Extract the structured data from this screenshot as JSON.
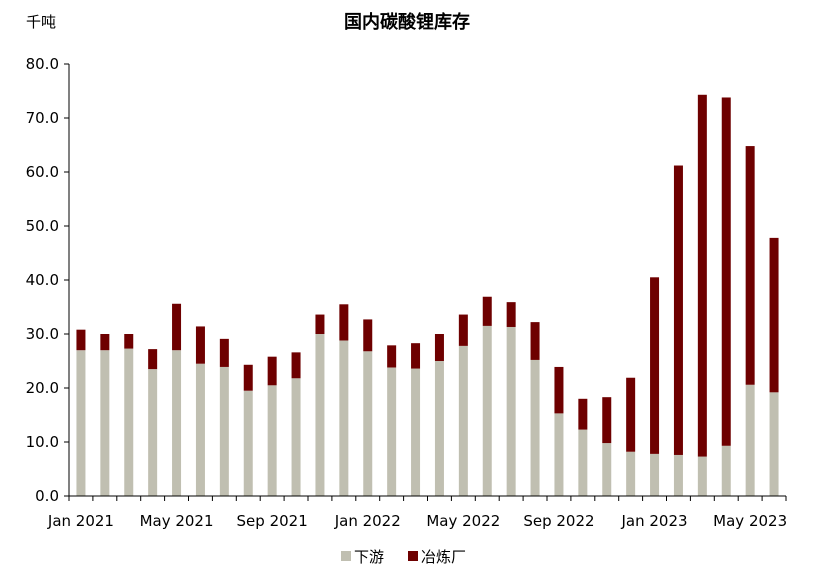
{
  "chart_data": {
    "type": "bar",
    "stacked": true,
    "title": "国内碳酸锂库存",
    "unit_label": "千吨",
    "ylim": [
      0,
      80
    ],
    "yticks": [
      "0.0",
      "10.0",
      "20.0",
      "30.0",
      "40.0",
      "50.0",
      "60.0",
      "70.0",
      "80.0"
    ],
    "x_tick_labels": [
      "Jan 2021",
      "May 2021",
      "Sep 2021",
      "Jan 2022",
      "May 2022",
      "Sep 2022",
      "Jan 2023",
      "May 2023"
    ],
    "x_tick_every": 4,
    "categories": [
      "2021-01",
      "2021-02",
      "2021-03",
      "2021-04",
      "2021-05",
      "2021-06",
      "2021-07",
      "2021-08",
      "2021-09",
      "2021-10",
      "2021-11",
      "2021-12",
      "2022-01",
      "2022-02",
      "2022-03",
      "2022-04",
      "2022-05",
      "2022-06",
      "2022-07",
      "2022-08",
      "2022-09",
      "2022-10",
      "2022-11",
      "2022-12",
      "2023-01",
      "2023-02",
      "2023-03",
      "2023-04",
      "2023-05",
      "2023-06"
    ],
    "series": [
      {
        "name": "下游",
        "color": "#c0bfb1",
        "values": [
          27.0,
          27.0,
          27.3,
          23.5,
          27.0,
          24.5,
          23.9,
          19.5,
          20.5,
          21.8,
          30.0,
          28.8,
          26.8,
          23.8,
          23.6,
          25.0,
          27.8,
          31.5,
          31.3,
          25.2,
          15.3,
          12.3,
          9.8,
          8.2,
          7.8,
          7.6,
          7.3,
          9.3,
          20.6,
          19.2
        ]
      },
      {
        "name": "冶炼厂",
        "color": "#6e0000",
        "values": [
          3.8,
          3.0,
          2.7,
          3.7,
          8.6,
          6.9,
          5.2,
          4.8,
          5.3,
          4.8,
          3.6,
          6.7,
          5.9,
          4.1,
          4.7,
          5.0,
          5.8,
          5.4,
          4.6,
          7.0,
          8.6,
          5.7,
          8.5,
          13.7,
          32.7,
          53.6,
          67.0,
          64.5,
          44.2,
          28.6
        ]
      }
    ],
    "legend_position": "bottom-center",
    "grid": false
  }
}
